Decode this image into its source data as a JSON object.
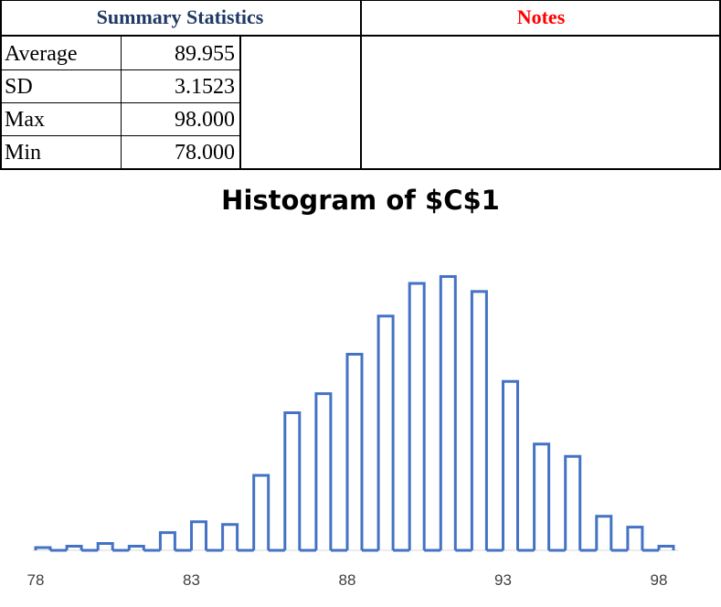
{
  "stats_table": {
    "header": "Summary Statistics",
    "header_color": "#1f3864",
    "notes_header": "Notes",
    "notes_color": "#ff0000",
    "rows": [
      {
        "label": "Average",
        "value": "89.955"
      },
      {
        "label": "SD",
        "value": "3.1523"
      },
      {
        "label": "Max",
        "value": "98.000"
      },
      {
        "label": "Min",
        "value": "78.000"
      }
    ]
  },
  "chart_data": {
    "type": "bar",
    "title": "Histogram of $C$1",
    "xlabel": "",
    "ylabel": "",
    "bar_color": "#4472c4",
    "x_ticks": [
      "78",
      "83",
      "88",
      "93",
      "98"
    ],
    "xlim": [
      78,
      98
    ],
    "ylim": [
      0,
      100
    ],
    "bins": [
      {
        "x": 78,
        "value": 1
      },
      {
        "x": 79,
        "value": 1.5
      },
      {
        "x": 80,
        "value": 2.5
      },
      {
        "x": 81,
        "value": 1.5
      },
      {
        "x": 82,
        "value": 6.5
      },
      {
        "x": 83,
        "value": 10.5
      },
      {
        "x": 84,
        "value": 9.5
      },
      {
        "x": 85,
        "value": 27.5
      },
      {
        "x": 86,
        "value": 50.5
      },
      {
        "x": 87,
        "value": 57.5
      },
      {
        "x": 88,
        "value": 72
      },
      {
        "x": 89,
        "value": 86
      },
      {
        "x": 90,
        "value": 98
      },
      {
        "x": 91,
        "value": 100.5
      },
      {
        "x": 92,
        "value": 95
      },
      {
        "x": 93,
        "value": 62
      },
      {
        "x": 94,
        "value": 39
      },
      {
        "x": 95,
        "value": 34.5
      },
      {
        "x": 96,
        "value": 12.5
      },
      {
        "x": 97,
        "value": 8.5
      },
      {
        "x": 98,
        "value": 1.5
      }
    ]
  }
}
